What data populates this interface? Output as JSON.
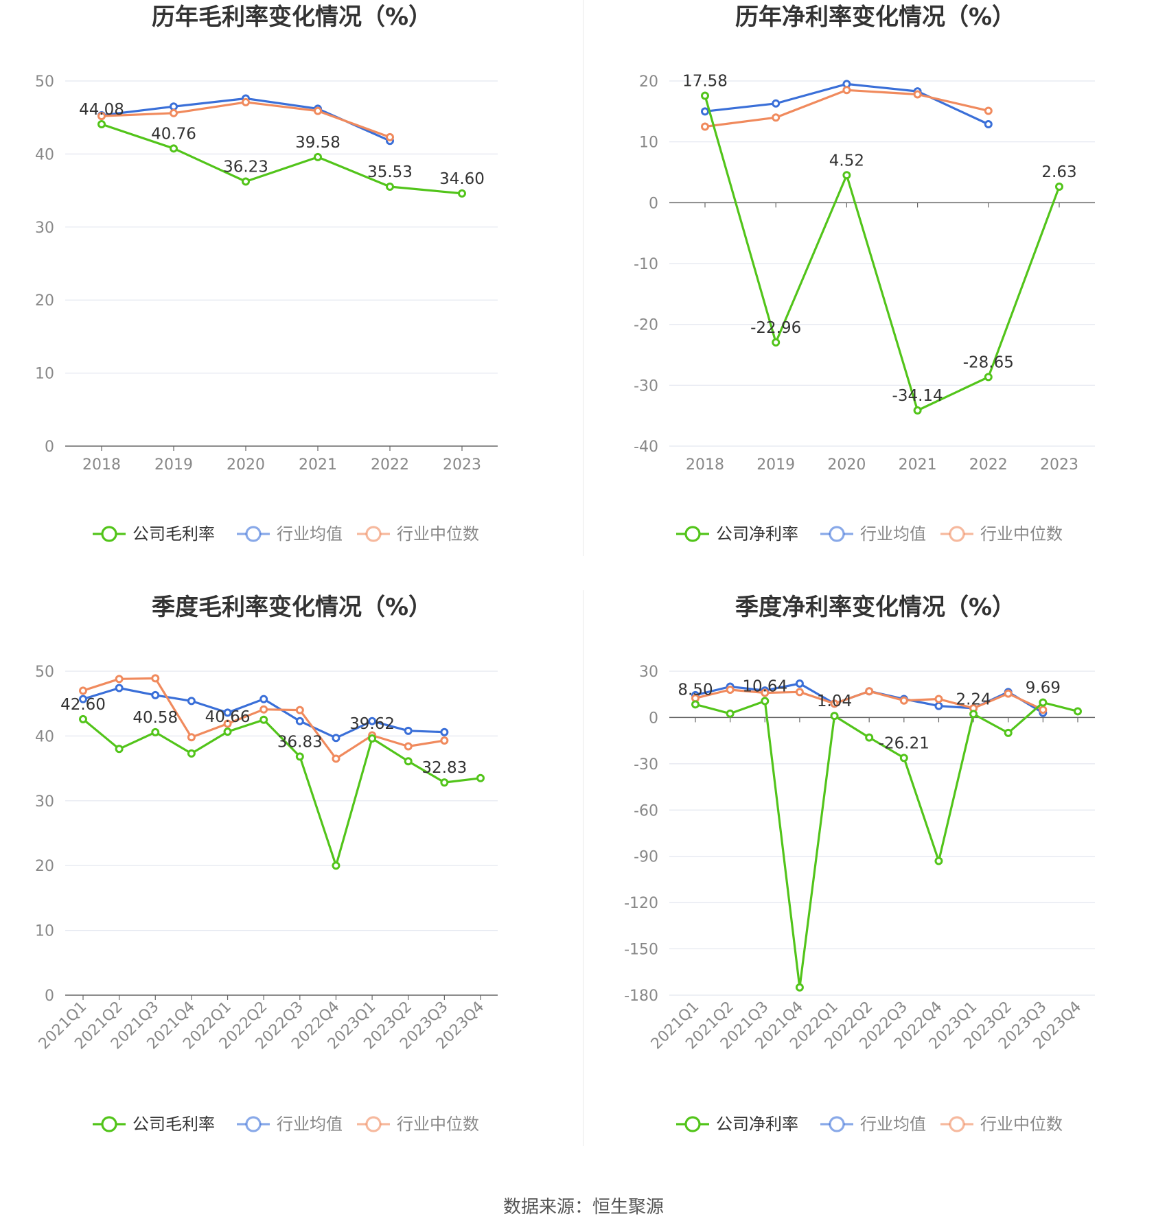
{
  "source_text": "数据来源：恒生聚源",
  "colors": {
    "company": "#52c41a",
    "industry_avg": "#3a6fd8",
    "industry_median": "#f08a5d",
    "grid": "#e3e6ef",
    "axis_text": "#888888",
    "label_text": "#333333"
  },
  "charts": [
    {
      "id": "annual-gross",
      "title": "历年毛利率变化情况（%）",
      "legend": [
        "公司毛利率",
        "行业均值",
        "行业中位数"
      ]
    },
    {
      "id": "annual-net",
      "title": "历年净利率变化情况（%）",
      "legend": [
        "公司净利率",
        "行业均值",
        "行业中位数"
      ]
    },
    {
      "id": "quarter-gross",
      "title": "季度毛利率变化情况（%）",
      "legend": [
        "公司毛利率",
        "行业均值",
        "行业中位数"
      ]
    },
    {
      "id": "quarter-net",
      "title": "季度净利率变化情况（%）",
      "legend": [
        "公司净利率",
        "行业均值",
        "行业中位数"
      ]
    }
  ],
  "chart_data": [
    {
      "type": "line",
      "title": "历年毛利率变化情况（%）",
      "categories": [
        "2018",
        "2019",
        "2020",
        "2021",
        "2022",
        "2023"
      ],
      "ylim": [
        0,
        50
      ],
      "yticks": [
        0,
        10,
        20,
        30,
        40,
        50
      ],
      "grid": true,
      "legend_position": "bottom",
      "rotate_x_labels": false,
      "series": [
        {
          "name": "公司毛利率",
          "color": "#52c41a",
          "values": [
            44.08,
            40.76,
            36.23,
            39.58,
            35.53,
            34.6
          ],
          "labels": [
            "44.08",
            "40.76",
            "36.23",
            "39.58",
            "35.53",
            "34.60"
          ]
        },
        {
          "name": "行业均值",
          "color": "#3a6fd8",
          "values": [
            45.3,
            46.5,
            47.6,
            46.2,
            41.8,
            null
          ]
        },
        {
          "name": "行业中位数",
          "color": "#f08a5d",
          "values": [
            45.2,
            45.6,
            47.1,
            45.9,
            42.3,
            null
          ]
        }
      ]
    },
    {
      "type": "line",
      "title": "历年净利率变化情况（%）",
      "categories": [
        "2018",
        "2019",
        "2020",
        "2021",
        "2022",
        "2023"
      ],
      "ylim": [
        -40,
        20
      ],
      "yticks": [
        -40,
        -30,
        -20,
        -10,
        0,
        10,
        20
      ],
      "grid": true,
      "legend_position": "bottom",
      "rotate_x_labels": false,
      "series": [
        {
          "name": "公司净利率",
          "color": "#52c41a",
          "values": [
            17.58,
            -22.96,
            4.52,
            -34.14,
            -28.65,
            2.63
          ],
          "labels": [
            "17.58",
            "-22.96",
            "4.52",
            "-34.14",
            "-28.65",
            "2.63"
          ]
        },
        {
          "name": "行业均值",
          "color": "#3a6fd8",
          "values": [
            15.0,
            16.3,
            19.5,
            18.3,
            12.9,
            null
          ]
        },
        {
          "name": "行业中位数",
          "color": "#f08a5d",
          "values": [
            12.5,
            14.0,
            18.5,
            17.8,
            15.1,
            null
          ]
        }
      ]
    },
    {
      "type": "line",
      "title": "季度毛利率变化情况（%）",
      "categories": [
        "2021Q1",
        "2021Q2",
        "2021Q3",
        "2021Q4",
        "2022Q1",
        "2022Q2",
        "2022Q3",
        "2022Q4",
        "2023Q1",
        "2023Q2",
        "2023Q3",
        "2023Q4"
      ],
      "ylim": [
        0,
        50
      ],
      "yticks": [
        0,
        10,
        20,
        30,
        40,
        50
      ],
      "grid": true,
      "legend_position": "bottom",
      "rotate_x_labels": true,
      "series": [
        {
          "name": "公司毛利率",
          "color": "#52c41a",
          "values": [
            42.6,
            38.0,
            40.58,
            37.3,
            40.66,
            42.5,
            36.83,
            20.0,
            39.62,
            36.1,
            32.83,
            33.5
          ],
          "labels": [
            "42.60",
            null,
            "40.58",
            null,
            "40.66",
            null,
            "36.83",
            null,
            "39.62",
            null,
            "32.83",
            null
          ]
        },
        {
          "name": "行业均值",
          "color": "#3a6fd8",
          "values": [
            45.7,
            47.4,
            46.3,
            45.4,
            43.6,
            45.7,
            42.3,
            39.7,
            42.3,
            40.8,
            40.6,
            null
          ]
        },
        {
          "name": "行业中位数",
          "color": "#f08a5d",
          "values": [
            47.0,
            48.8,
            48.9,
            39.8,
            41.9,
            44.1,
            44.0,
            36.5,
            40.1,
            38.4,
            39.3,
            null
          ]
        }
      ]
    },
    {
      "type": "line",
      "title": "季度净利率变化情况（%）",
      "categories": [
        "2021Q1",
        "2021Q2",
        "2021Q3",
        "2021Q4",
        "2022Q1",
        "2022Q2",
        "2022Q3",
        "2022Q4",
        "2023Q1",
        "2023Q2",
        "2023Q3",
        "2023Q4"
      ],
      "ylim": [
        -180,
        30
      ],
      "yticks": [
        -180,
        -150,
        -120,
        -90,
        -60,
        -30,
        0,
        30
      ],
      "grid": true,
      "legend_position": "bottom",
      "rotate_x_labels": true,
      "series": [
        {
          "name": "公司净利率",
          "color": "#52c41a",
          "values": [
            8.5,
            2.5,
            10.64,
            -175.0,
            1.04,
            -13.0,
            -26.21,
            -93.0,
            2.24,
            -10.0,
            9.69,
            4.0
          ],
          "labels": [
            "8.50",
            null,
            "10.64",
            null,
            "1.04",
            null,
            "-26.21",
            null,
            "2.24",
            null,
            "9.69",
            null
          ]
        },
        {
          "name": "行业均值",
          "color": "#3a6fd8",
          "values": [
            14.5,
            20.0,
            17.5,
            22.0,
            9.0,
            17.0,
            12.0,
            7.5,
            6.0,
            16.5,
            3.0,
            null
          ]
        },
        {
          "name": "行业中位数",
          "color": "#f08a5d",
          "values": [
            12.5,
            18.0,
            16.0,
            16.5,
            9.0,
            17.0,
            11.0,
            12.0,
            6.0,
            15.5,
            5.0,
            null
          ]
        }
      ]
    }
  ]
}
